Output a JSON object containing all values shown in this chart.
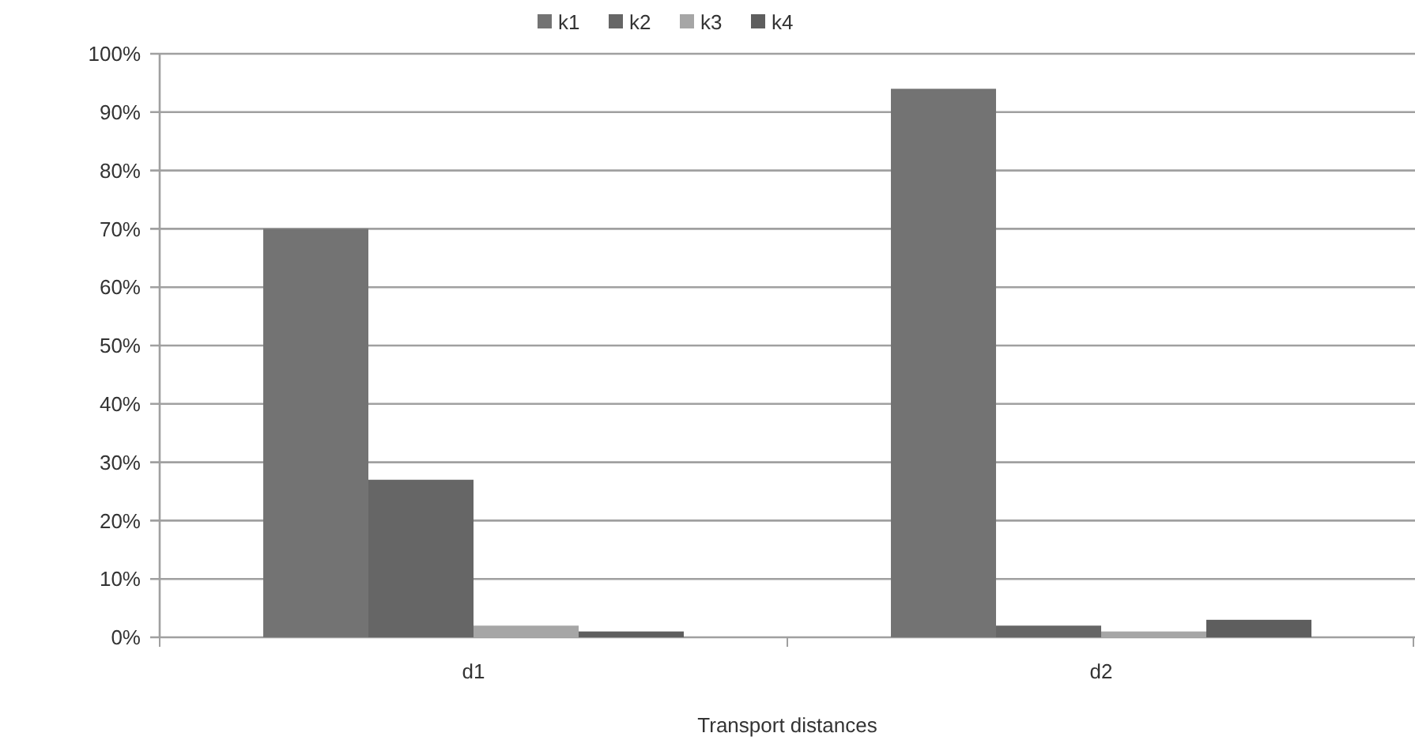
{
  "chart_data": {
    "type": "bar",
    "xlabel": "Transport distances",
    "categories": [
      "d1",
      "d2"
    ],
    "series": [
      {
        "name": "k1",
        "color": "#737373",
        "values": [
          70,
          94
        ]
      },
      {
        "name": "k2",
        "color": "#666666",
        "values": [
          27,
          2
        ]
      },
      {
        "name": "k3",
        "color": "#a6a6a6",
        "values": [
          2,
          1
        ]
      },
      {
        "name": "k4",
        "color": "#5e5e5e",
        "values": [
          1,
          3
        ]
      }
    ],
    "ylim": [
      0,
      100
    ],
    "yticks": [
      {
        "value": 0,
        "label": "0%"
      },
      {
        "value": 10,
        "label": "10%"
      },
      {
        "value": 20,
        "label": "20%"
      },
      {
        "value": 30,
        "label": "30%"
      },
      {
        "value": 40,
        "label": "40%"
      },
      {
        "value": 50,
        "label": "50%"
      },
      {
        "value": 60,
        "label": "60%"
      },
      {
        "value": 70,
        "label": "70%"
      },
      {
        "value": 80,
        "label": "80%"
      },
      {
        "value": 90,
        "label": "90%"
      },
      {
        "value": 100,
        "label": "100%"
      }
    ],
    "grid": "y",
    "legend": "top"
  }
}
